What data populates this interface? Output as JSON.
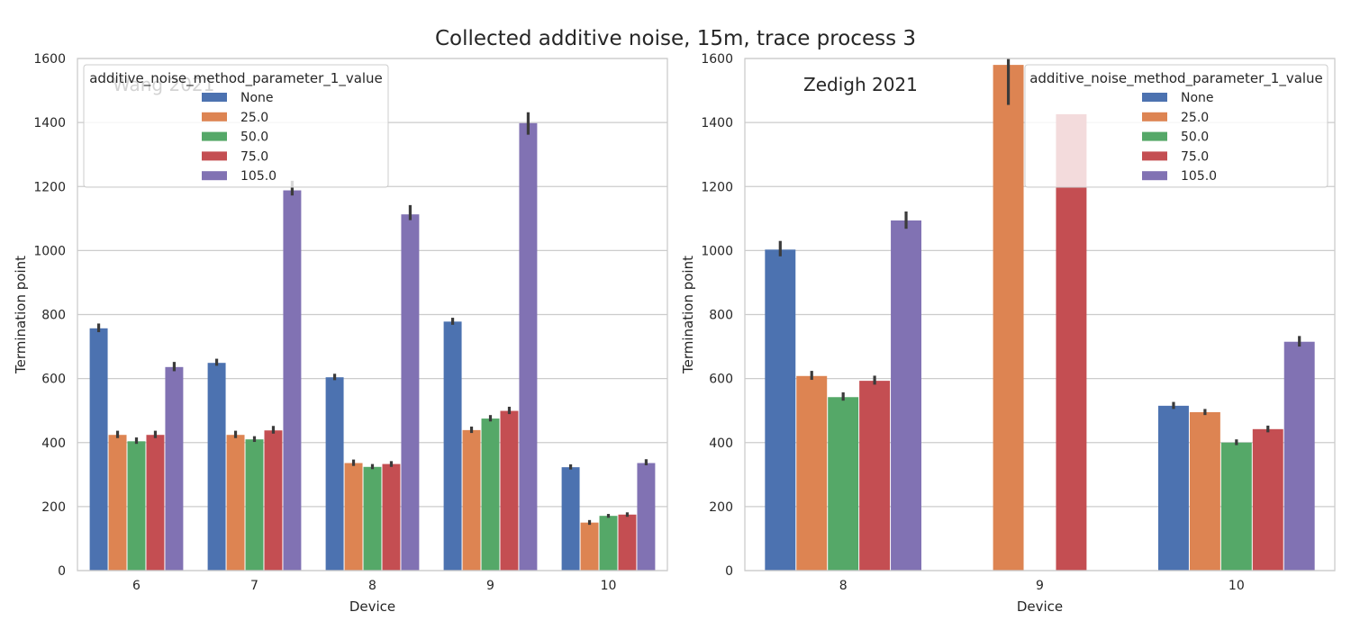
{
  "title": "Collected additive noise, 15m, trace process 3",
  "chart_data": [
    {
      "type": "bar",
      "annotation": "Wang 2021",
      "xlabel": "Device",
      "ylabel": "Termination point",
      "ylim": [
        0,
        1600
      ],
      "yticks": [
        0,
        200,
        400,
        600,
        800,
        1000,
        1200,
        1400,
        1600
      ],
      "categories": [
        "6",
        "7",
        "8",
        "9",
        "10"
      ],
      "legend": {
        "title": "additive_noise_method_parameter_1_value",
        "placement": "top-left"
      },
      "grid": true,
      "series": [
        {
          "name": "None",
          "color": "#4c72b0",
          "values": [
            757,
            649,
            604,
            778,
            323
          ],
          "err": [
            [
              745,
              772
            ],
            [
              640,
              662
            ],
            [
              595,
              615
            ],
            [
              768,
              790
            ],
            [
              316,
              332
            ]
          ]
        },
        {
          "name": "25.0",
          "color": "#dd8452",
          "values": [
            424,
            424,
            336,
            439,
            150
          ],
          "err": [
            [
              414,
              437
            ],
            [
              414,
              437
            ],
            [
              327,
              347
            ],
            [
              430,
              450
            ],
            [
              143,
              158
            ]
          ]
        },
        {
          "name": "50.0",
          "color": "#55a868",
          "values": [
            404,
            410,
            324,
            475,
            171
          ],
          "err": [
            [
              396,
              416
            ],
            [
              402,
              420
            ],
            [
              317,
              333
            ],
            [
              466,
              486
            ],
            [
              165,
              177
            ]
          ]
        },
        {
          "name": "75.0",
          "color": "#c44e52",
          "values": [
            424,
            438,
            333,
            499,
            175
          ],
          "err": [
            [
              414,
              437
            ],
            [
              428,
              452
            ],
            [
              324,
              342
            ],
            [
              489,
              512
            ],
            [
              168,
              182
            ]
          ]
        },
        {
          "name": "105.0",
          "color": "#8172b3",
          "values": [
            636,
            1188,
            1113,
            1398,
            336
          ],
          "err": [
            [
              623,
              652
            ],
            [
              1172,
              1218
            ],
            [
              1095,
              1142
            ],
            [
              1362,
              1432
            ],
            [
              329,
              348
            ]
          ]
        }
      ]
    },
    {
      "type": "bar",
      "annotation": "Zedigh 2021",
      "xlabel": "Device",
      "ylabel": "Termination point",
      "ylim": [
        0,
        1600
      ],
      "yticks": [
        0,
        200,
        400,
        600,
        800,
        1000,
        1200,
        1400,
        1600
      ],
      "categories": [
        "8",
        "9",
        "10"
      ],
      "legend": {
        "title": "additive_noise_method_parameter_1_value",
        "placement": "top-right"
      },
      "grid": true,
      "series": [
        {
          "name": "None",
          "color": "#4c72b0",
          "values": [
            1003,
            null,
            515
          ],
          "err": [
            [
              982,
              1030
            ],
            null,
            [
              505,
              527
            ]
          ]
        },
        {
          "name": "25.0",
          "color": "#dd8452",
          "values": [
            608,
            1580,
            495
          ],
          "err": [
            [
              596,
              624
            ],
            [
              1455,
              1600
            ],
            [
              486,
              505
            ]
          ]
        },
        {
          "name": "50.0",
          "color": "#55a868",
          "values": [
            542,
            null,
            400
          ],
          "err": [
            [
              531,
              557
            ],
            null,
            [
              392,
              410
            ]
          ]
        },
        {
          "name": "75.0",
          "color": "#c44e52",
          "values": [
            593,
            1426,
            442
          ],
          "err": [
            [
              581,
              609
            ],
            null,
            [
              432,
              453
            ]
          ]
        },
        {
          "name": "105.0",
          "color": "#8172b3",
          "values": [
            1094,
            null,
            715
          ],
          "err": [
            [
              1068,
              1122
            ],
            null,
            [
              700,
              733
            ]
          ]
        }
      ]
    }
  ]
}
